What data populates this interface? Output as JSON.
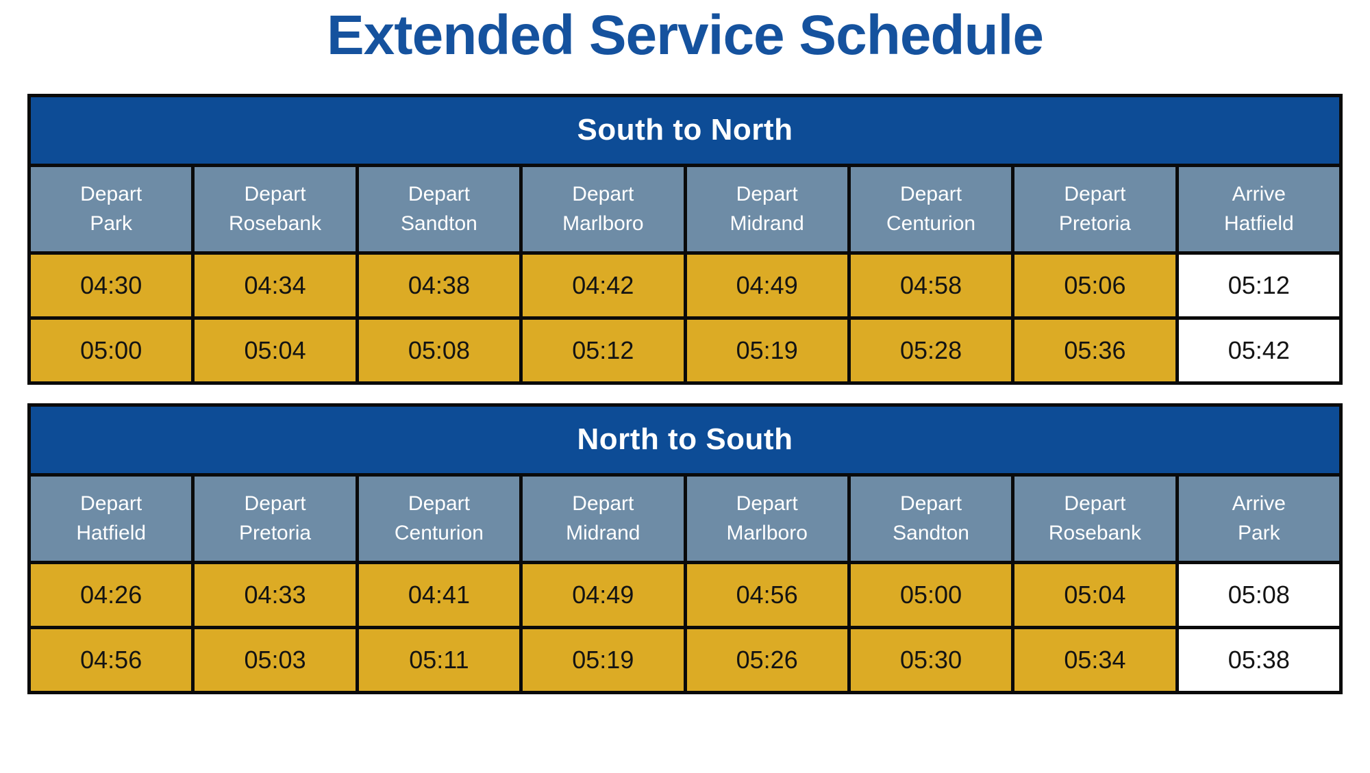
{
  "page": {
    "title": "Extended Service Schedule"
  },
  "colors": {
    "title_blue": "#15529E",
    "band_navy": "#0D4C96",
    "header_slate": "#6E8CA6",
    "cell_gold": "#DCAB25",
    "cell_white": "#FFFFFF",
    "border_black": "#0A0A0A",
    "time_text": "#131313"
  },
  "tables": [
    {
      "title": "South to North",
      "columns": [
        {
          "line1": "Depart",
          "line2": "Park"
        },
        {
          "line1": "Depart",
          "line2": "Rosebank"
        },
        {
          "line1": "Depart",
          "line2": "Sandton"
        },
        {
          "line1": "Depart",
          "line2": "Marlboro"
        },
        {
          "line1": "Depart",
          "line2": "Midrand"
        },
        {
          "line1": "Depart",
          "line2": "Centurion"
        },
        {
          "line1": "Depart",
          "line2": "Pretoria"
        },
        {
          "line1": "Arrive",
          "line2": "Hatfield"
        }
      ],
      "rows": [
        [
          "04:30",
          "04:34",
          "04:38",
          "04:42",
          "04:49",
          "04:58",
          "05:06",
          "05:12"
        ],
        [
          "05:00",
          "05:04",
          "05:08",
          "05:12",
          "05:19",
          "05:28",
          "05:36",
          "05:42"
        ]
      ]
    },
    {
      "title": "North to South",
      "columns": [
        {
          "line1": "Depart",
          "line2": "Hatfield"
        },
        {
          "line1": "Depart",
          "line2": "Pretoria"
        },
        {
          "line1": "Depart",
          "line2": "Centurion"
        },
        {
          "line1": "Depart",
          "line2": "Midrand"
        },
        {
          "line1": "Depart",
          "line2": "Marlboro"
        },
        {
          "line1": "Depart",
          "line2": "Sandton"
        },
        {
          "line1": "Depart",
          "line2": "Rosebank"
        },
        {
          "line1": "Arrive",
          "line2": "Park"
        }
      ],
      "rows": [
        [
          "04:26",
          "04:33",
          "04:41",
          "04:49",
          "04:56",
          "05:00",
          "05:04",
          "05:08"
        ],
        [
          "04:56",
          "05:03",
          "05:11",
          "05:19",
          "05:26",
          "05:30",
          "05:34",
          "05:38"
        ]
      ]
    }
  ]
}
